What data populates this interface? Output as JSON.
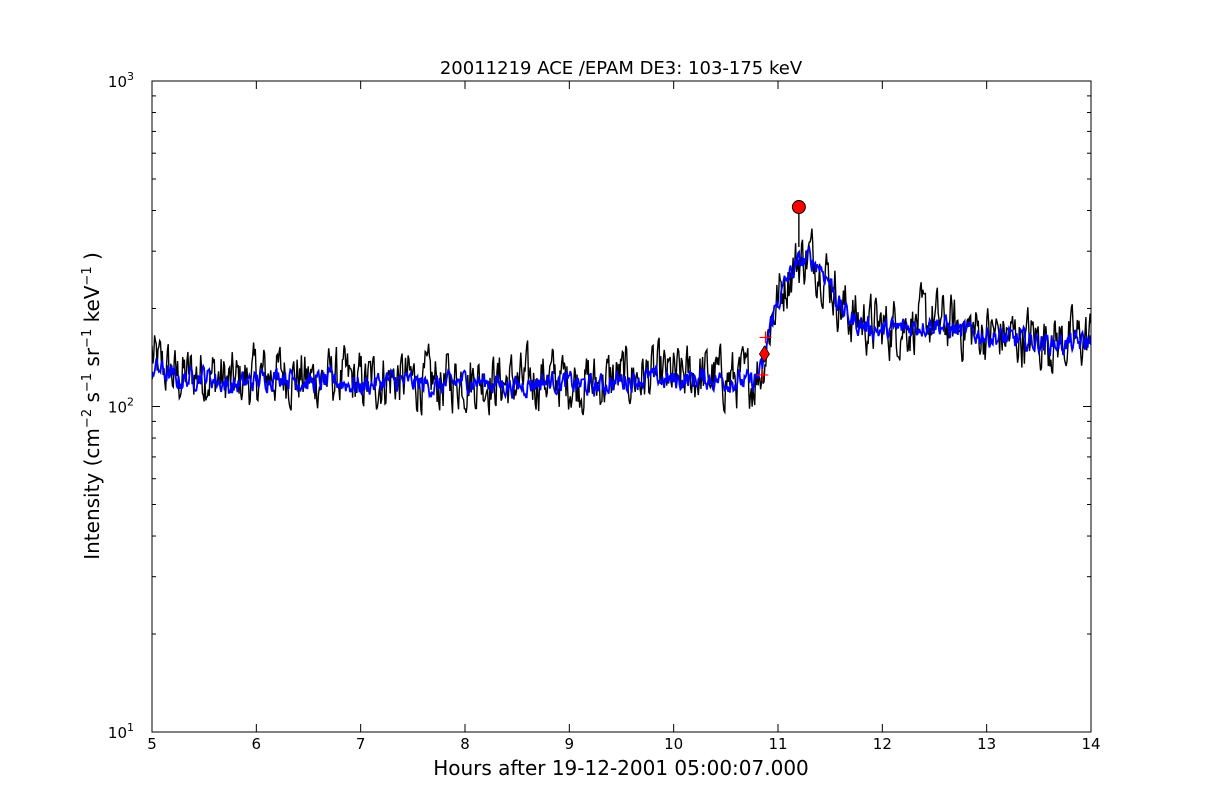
{
  "chart_data": {
    "type": "line",
    "title": "20011219 ACE /EPAM DE3: 103-175 keV",
    "xlabel": "Hours after 19-12-2001 05:00:07.000",
    "ylabel": {
      "parts": [
        {
          "text": "Intensity (cm",
          "sup": false
        },
        {
          "text": "−2",
          "sup": true
        },
        {
          "text": " s",
          "sup": false
        },
        {
          "text": "−1",
          "sup": true
        },
        {
          "text": " sr",
          "sup": false
        },
        {
          "text": "−1",
          "sup": true
        },
        {
          "text": " keV",
          "sup": false
        },
        {
          "text": "−1",
          "sup": true
        },
        {
          "text": " )",
          "sup": false
        }
      ]
    },
    "xlim": [
      5,
      14
    ],
    "ylim": [
      10,
      1000
    ],
    "yscale": "log",
    "grid": false,
    "x_ticks": [
      {
        "value": 5,
        "label": "5"
      },
      {
        "value": 6,
        "label": "6"
      },
      {
        "value": 7,
        "label": "7"
      },
      {
        "value": 8,
        "label": "8"
      },
      {
        "value": 9,
        "label": "9"
      },
      {
        "value": 10,
        "label": "10"
      },
      {
        "value": 11,
        "label": "11"
      },
      {
        "value": 12,
        "label": "12"
      },
      {
        "value": 13,
        "label": "13"
      },
      {
        "value": 14,
        "label": "14"
      }
    ],
    "y_ticks": [
      {
        "value": 10,
        "base": "10",
        "exp": "1"
      },
      {
        "value": 100,
        "base": "10",
        "exp": "2"
      },
      {
        "value": 1000,
        "base": "10",
        "exp": "3"
      }
    ],
    "series": [
      {
        "role": "raw",
        "color": "#000000",
        "x": [
          5.0,
          5.25,
          5.5,
          5.75,
          6.0,
          6.25,
          6.5,
          6.75,
          7.0,
          7.25,
          7.5,
          7.75,
          8.0,
          8.25,
          8.5,
          8.75,
          9.0,
          9.25,
          9.5,
          9.75,
          10.0,
          10.25,
          10.5,
          10.75,
          10.85,
          10.9,
          10.95,
          11.0,
          11.1,
          11.2,
          11.3,
          11.4,
          11.5,
          11.6,
          11.75,
          12.0,
          12.25,
          12.5,
          12.75,
          13.0,
          13.25,
          13.5,
          13.75,
          14.0
        ],
        "y": [
          135,
          120,
          125,
          115,
          120,
          125,
          118,
          120,
          115,
          120,
          118,
          115,
          120,
          118,
          115,
          120,
          118,
          115,
          120,
          122,
          120,
          122,
          120,
          118,
          130,
          160,
          190,
          210,
          250,
          275,
          285,
          270,
          240,
          200,
          180,
          170,
          175,
          180,
          170,
          165,
          160,
          158,
          155,
          158
        ],
        "noise_low": 0.72,
        "noise_high": 1.45
      },
      {
        "role": "smoothed",
        "color": "#0000ff",
        "x": [
          5.0,
          5.25,
          5.5,
          5.75,
          6.0,
          6.25,
          6.5,
          6.75,
          7.0,
          7.25,
          7.5,
          7.75,
          8.0,
          8.25,
          8.5,
          8.75,
          9.0,
          9.25,
          9.5,
          9.75,
          10.0,
          10.25,
          10.5,
          10.75,
          10.85,
          10.9,
          10.95,
          11.0,
          11.1,
          11.2,
          11.3,
          11.4,
          11.5,
          11.6,
          11.75,
          12.0,
          12.25,
          12.5,
          12.75,
          13.0,
          13.25,
          13.5,
          13.75,
          14.0
        ],
        "y": [
          135,
          120,
          125,
          115,
          120,
          125,
          118,
          120,
          115,
          120,
          118,
          115,
          120,
          118,
          115,
          120,
          118,
          115,
          120,
          122,
          120,
          122,
          120,
          118,
          130,
          160,
          190,
          210,
          250,
          275,
          285,
          270,
          240,
          200,
          180,
          170,
          175,
          180,
          170,
          165,
          160,
          158,
          155,
          158
        ],
        "noise_low": 0.88,
        "noise_high": 1.14
      }
    ],
    "markers": [
      {
        "type": "circle",
        "x": 11.2,
        "y": 410,
        "color": "#ff0000"
      },
      {
        "type": "diamond",
        "x": 10.87,
        "y": 145,
        "color": "#ff0000"
      },
      {
        "type": "plus",
        "x": 10.88,
        "y": 163,
        "color": "#ff0000"
      },
      {
        "type": "plus",
        "x": 10.85,
        "y": 125,
        "color": "#ff0000"
      }
    ]
  }
}
